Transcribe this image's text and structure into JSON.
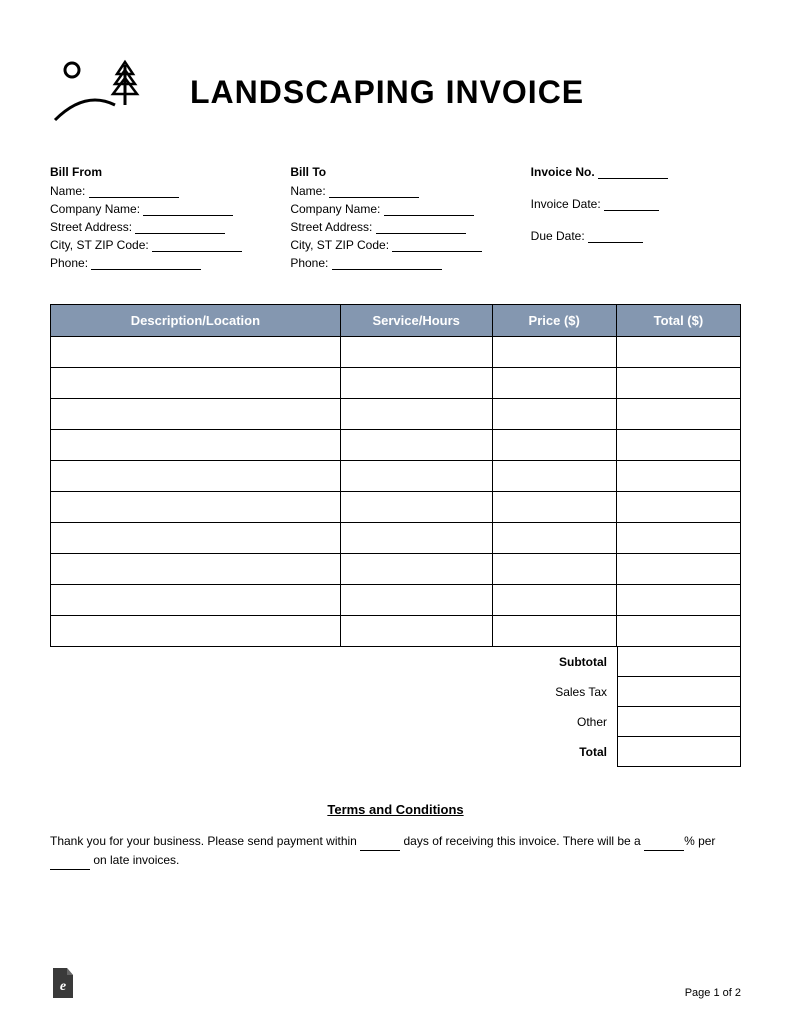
{
  "title": "LANDSCAPING INVOICE",
  "billFrom": {
    "heading": "Bill From",
    "fields": [
      "Name:",
      "Company Name:",
      "Street Address:",
      "City, ST ZIP Code:",
      "Phone:"
    ]
  },
  "billTo": {
    "heading": "Bill To",
    "fields": [
      "Name:",
      "Company Name:",
      "Street Address:",
      "City, ST ZIP Code:",
      "Phone:"
    ]
  },
  "invoiceMeta": {
    "invoiceNoLabel": "Invoice No.",
    "invoiceDateLabel": "Invoice Date:",
    "dueDateLabel": "Due Date:"
  },
  "table": {
    "headers": [
      "Description/Location",
      "Service/Hours",
      "Price ($)",
      "Total ($)"
    ],
    "rowCount": 10,
    "header_bg": "#8497b0",
    "header_color": "#ffffff"
  },
  "totals": {
    "subtotal": "Subtotal",
    "salesTax": "Sales Tax",
    "other": "Other",
    "total": "Total"
  },
  "terms": {
    "heading": "Terms and Conditions",
    "text1": "Thank you for your business. Please send payment within ",
    "text2": " days of receiving this invoice. There will be a ",
    "text3": "% per ",
    "text4": " on late invoices."
  },
  "footer": {
    "pageText": "Page 1 of 2"
  }
}
